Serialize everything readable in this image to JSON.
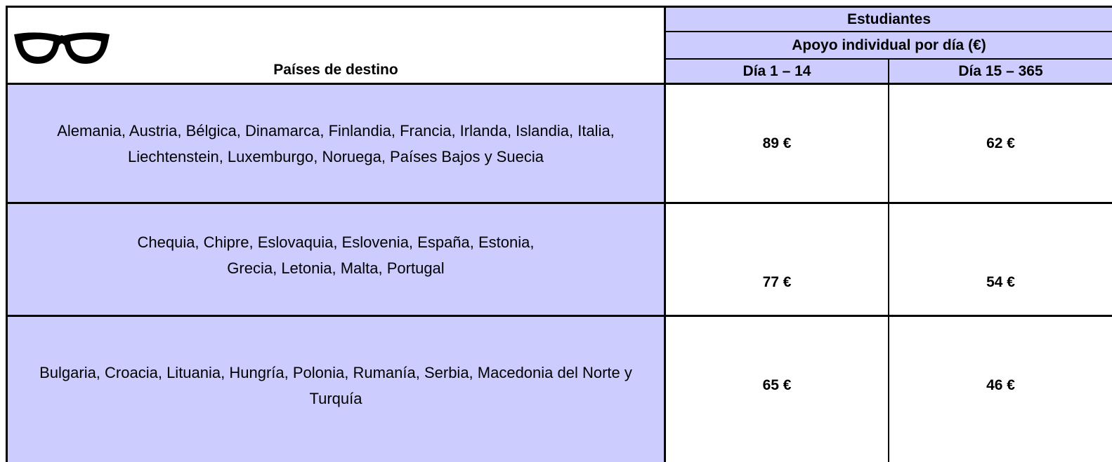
{
  "table": {
    "corner_header": "Países de destino",
    "group_header": "Estudiantes",
    "sub_header": "Apoyo individual por día (€)",
    "columns": [
      "Día 1 – 14",
      "Día 15 – 365"
    ],
    "rows": [
      {
        "countries": "Alemania, Austria, Bélgica, Dinamarca, Finlandia, Francia, Irlanda, Islandia, Italia, Liechtenstein, Luxemburgo, Noruega, Países Bajos y Suecia",
        "values": [
          "89 €",
          "62 €"
        ]
      },
      {
        "countries": "Chequia, Chipre, Eslovaquia, Eslovenia, España, Estonia, Grecia, Letonia, Malta, Portugal",
        "values": [
          "77 €",
          "54 €"
        ]
      },
      {
        "countries": "Bulgaria, Croacia, Lituania, Hungría, Polonia, Rumanía, Serbia, Macedonia del Norte y Turquía",
        "values": [
          "65 €",
          "46 €"
        ]
      }
    ]
  }
}
